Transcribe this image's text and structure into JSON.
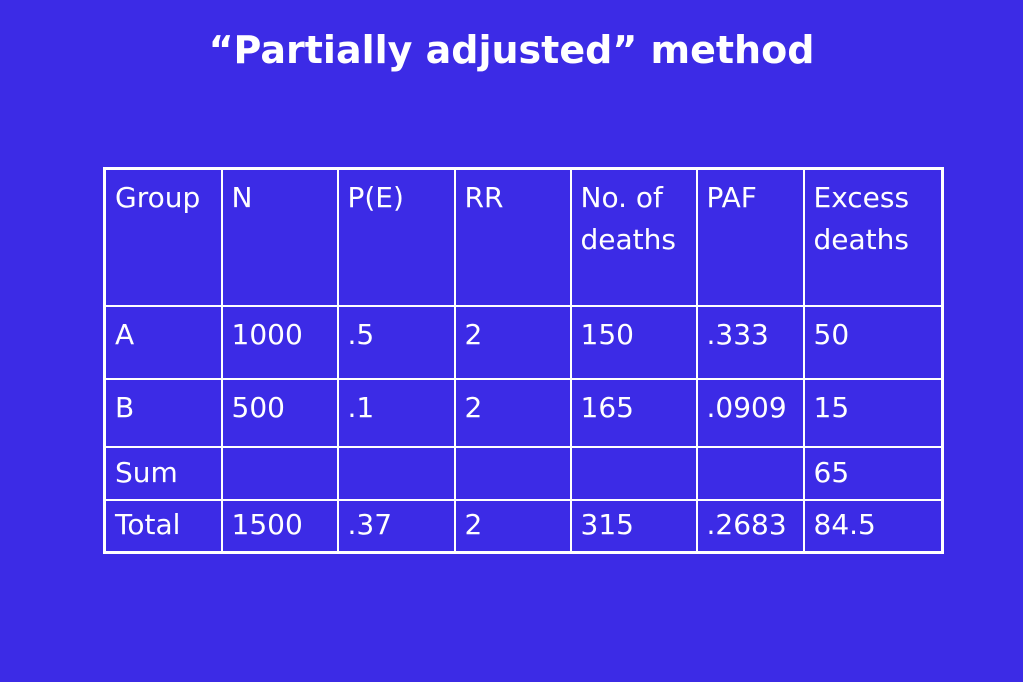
{
  "slide": {
    "title": "“Partially adjusted” method"
  },
  "table": {
    "headers": [
      "Group",
      "N",
      "P(E)",
      "RR",
      "No. of deaths",
      "PAF",
      "Excess deaths"
    ],
    "rows": [
      [
        "A",
        "1000",
        ".5",
        "2",
        "150",
        ".333",
        "50"
      ],
      [
        "B",
        "500",
        ".1",
        "2",
        "165",
        ".0909",
        "15"
      ],
      [
        "Sum",
        "",
        "",
        "",
        "",
        "",
        "65"
      ],
      [
        "Total",
        "1500",
        ".37",
        "2",
        "315",
        ".2683",
        "84.5"
      ]
    ]
  },
  "colors": {
    "background": "#3c2be6",
    "text": "#ffffff",
    "border": "#ffffff"
  }
}
